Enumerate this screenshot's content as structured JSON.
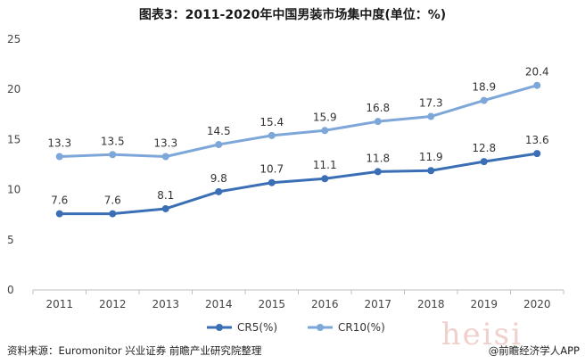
{
  "title": "图表3：2011-2020年中国男装市场集中度(单位：%)",
  "source": "资料来源：Euromonitor 兴业证券 前瞻产业研究院整理",
  "brand": "@前瞻经济学人APP",
  "watermark": "heisi",
  "chart_data": {
    "type": "line",
    "title": "图表3：2011-2020年中国男装市场集中度(单位：%)",
    "categories": [
      "2011",
      "2012",
      "2013",
      "2014",
      "2015",
      "2016",
      "2017",
      "2018",
      "2019",
      "2020"
    ],
    "series": [
      {
        "name": "CR5(%)",
        "color": "#3a6fb5",
        "values": [
          7.6,
          7.6,
          8.1,
          9.8,
          10.7,
          11.1,
          11.8,
          11.9,
          12.8,
          13.6
        ]
      },
      {
        "name": "CR10(%)",
        "color": "#7ea7d9",
        "values": [
          13.3,
          13.5,
          13.3,
          14.5,
          15.4,
          15.9,
          16.8,
          17.3,
          18.9,
          20.4
        ]
      }
    ],
    "ylim": [
      0,
      25
    ],
    "yticks": [
      "0",
      "5",
      "10",
      "15",
      "20",
      "25"
    ],
    "grid": false,
    "legend": "bottom"
  }
}
